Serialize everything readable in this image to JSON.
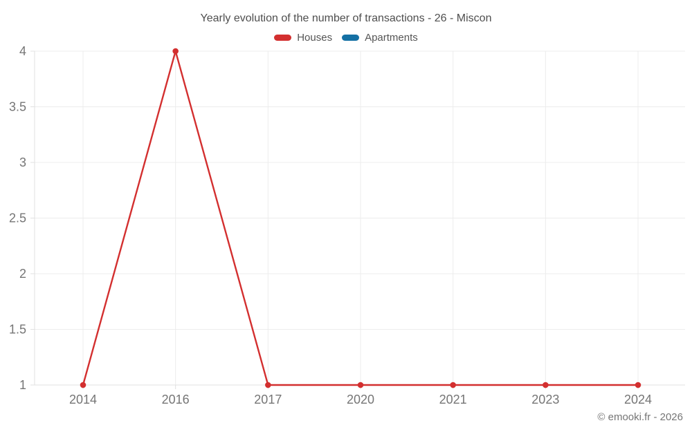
{
  "chart_data": {
    "type": "line",
    "title": "Yearly evolution of the number of transactions - 26 - Miscon",
    "categories": [
      "2014",
      "2016",
      "2017",
      "2020",
      "2021",
      "2023",
      "2024"
    ],
    "series": [
      {
        "name": "Houses",
        "color": "#d32f2f",
        "values": [
          1,
          4,
          1,
          1,
          1,
          1,
          1
        ]
      },
      {
        "name": "Apartments",
        "color": "#1470a4",
        "values": []
      }
    ],
    "xlabel": "",
    "ylabel": "",
    "ylim": [
      1,
      4
    ],
    "yticks": [
      1,
      1.5,
      2,
      2.5,
      3,
      3.5,
      4
    ],
    "ytick_labels": [
      "1",
      "1.5",
      "2",
      "2.5",
      "3",
      "3.5",
      "4"
    ],
    "grid": true,
    "legend_position": "top"
  },
  "footer": {
    "copyright": "© emooki.fr - 2026"
  },
  "colors": {
    "background": "#ffffff",
    "grid": "#ececec",
    "axis": "#e0e0e0",
    "tick_label": "#757575",
    "title_text": "#4e4e4e",
    "legend_text": "#555555",
    "copyright_text": "#757575"
  }
}
